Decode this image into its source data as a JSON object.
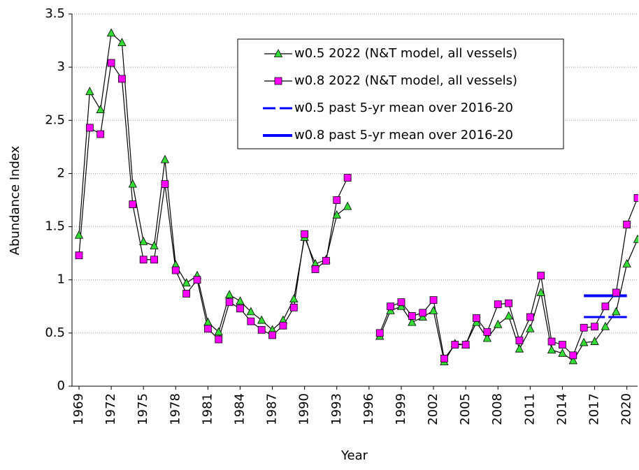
{
  "chart_data": {
    "type": "line",
    "x_label": "Year",
    "y_label": "Abundance Index",
    "x": [
      1969,
      1970,
      1971,
      1972,
      1973,
      1974,
      1975,
      1976,
      1977,
      1978,
      1979,
      1980,
      1981,
      1982,
      1983,
      1984,
      1985,
      1986,
      1987,
      1988,
      1989,
      1990,
      1991,
      1992,
      1993,
      1994,
      1995,
      1996,
      1997,
      1998,
      1999,
      2000,
      2001,
      2002,
      2003,
      2004,
      2005,
      2006,
      2007,
      2008,
      2009,
      2010,
      2011,
      2012,
      2013,
      2014,
      2015,
      2016,
      2017,
      2018,
      2019,
      2020,
      2021
    ],
    "series": [
      {
        "name": "w0.5 2022 (N&T model, all vessels)",
        "color": "#33dd33",
        "marker": "triangle",
        "values": [
          1.42,
          2.77,
          2.6,
          3.32,
          3.23,
          1.9,
          1.36,
          1.32,
          2.13,
          1.14,
          0.97,
          1.04,
          0.6,
          0.51,
          0.86,
          0.8,
          0.7,
          0.62,
          0.53,
          0.62,
          0.82,
          1.4,
          1.15,
          1.19,
          1.61,
          1.69,
          null,
          null,
          0.47,
          0.71,
          0.75,
          0.6,
          0.65,
          0.71,
          0.23,
          0.4,
          0.39,
          0.6,
          0.45,
          0.58,
          0.66,
          0.35,
          0.54,
          0.88,
          0.34,
          0.31,
          0.24,
          0.41,
          0.42,
          0.56,
          0.7,
          1.15,
          1.38
        ]
      },
      {
        "name": "w0.8 2022 (N&T model, all vessels)",
        "color": "#ff00ff",
        "marker": "square",
        "values": [
          1.23,
          2.43,
          2.37,
          3.04,
          2.89,
          1.71,
          1.19,
          1.19,
          1.9,
          1.09,
          0.87,
          1.0,
          0.54,
          0.44,
          0.79,
          0.73,
          0.61,
          0.53,
          0.48,
          0.57,
          0.74,
          1.43,
          1.1,
          1.18,
          1.75,
          1.96,
          null,
          null,
          0.5,
          0.75,
          0.79,
          0.66,
          0.69,
          0.81,
          0.26,
          0.39,
          0.39,
          0.64,
          0.51,
          0.77,
          0.78,
          0.43,
          0.65,
          1.04,
          0.42,
          0.39,
          0.29,
          0.55,
          0.56,
          0.75,
          0.88,
          1.52,
          1.77
        ]
      },
      {
        "name": "w0.5 past 5-yr mean over 2016-20",
        "color": "#0000ff",
        "dashed": true,
        "x": [
          2016,
          2020
        ],
        "values": [
          0.65,
          0.65
        ]
      },
      {
        "name": "w0.8 past 5-yr mean over 2016-20",
        "color": "#0000ff",
        "dashed": false,
        "x": [
          2016,
          2020
        ],
        "values": [
          0.85,
          0.85
        ]
      }
    ],
    "xlim": [
      1968.35,
      2021
    ],
    "xticks": [
      1969,
      1972,
      1975,
      1978,
      1981,
      1984,
      1987,
      1990,
      1993,
      1996,
      1999,
      2002,
      2005,
      2008,
      2011,
      2014,
      2017,
      2020
    ],
    "ylim": [
      0,
      3.5
    ],
    "yticks": [
      0,
      0.5,
      1,
      1.5,
      2,
      2.5,
      3,
      3.5
    ],
    "grid": true
  }
}
